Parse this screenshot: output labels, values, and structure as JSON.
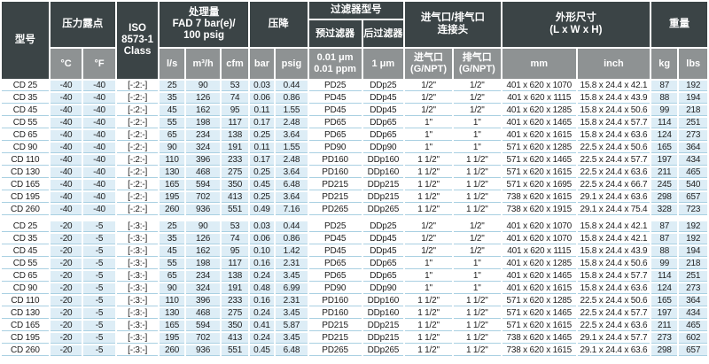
{
  "colors": {
    "header_dark": "#3b4446",
    "header_gray": "#8e9293",
    "cell_highlight_blue": "#ddedf6",
    "row_separator_blue": "#a9d0e2",
    "text": "#1f1f1f"
  },
  "table": {
    "groups": {
      "model": "型号",
      "dew_point": "压力露点",
      "iso": "ISO\n8573-1\nClass",
      "capacity": "处理量\nFAD 7 bar(e)/\n100 psig",
      "pressure_drop": "压降",
      "filters": "过滤器型号",
      "filters_pre": "预过滤器",
      "filters_after": "后过滤器",
      "connections": "进气口/排气口\n连接头",
      "dimensions": "外形尺寸\n(L x W x H)",
      "weight": "重量"
    },
    "units": {
      "c": "°C",
      "f": "°F",
      "ls": "l/s",
      "m3h": "m³/h",
      "cfm": "cfm",
      "bar": "bar",
      "psig": "psig",
      "pre": "0.01 μm\n0.01 ppm",
      "after": "1 μm",
      "inlet": "进气口\n(G/NPT)",
      "outlet": "排气口\n(G/NPT)",
      "mm": "mm",
      "inch": "inch",
      "kg": "kg",
      "lbs": "lbs"
    },
    "row_keys": [
      "model",
      "c",
      "f",
      "iso",
      "ls",
      "m3h",
      "cfm",
      "bar",
      "psig",
      "pre",
      "after",
      "inlet",
      "outlet",
      "mm",
      "inch",
      "kg",
      "lbs"
    ],
    "rows": [
      [
        "CD 25",
        "-40",
        "-40",
        "[-:2:-]",
        "25",
        "90",
        "53",
        "0.03",
        "0.44",
        "PD25",
        "DDp25",
        "1/2\"",
        "1/2\"",
        "401 x 620 x 1070",
        "15.8 x 24.4 x 42.1",
        "87",
        "192"
      ],
      [
        "CD 35",
        "-40",
        "-40",
        "[-:2:-]",
        "35",
        "126",
        "74",
        "0.06",
        "0.86",
        "PD45",
        "DDp45",
        "1/2\"",
        "1/2\"",
        "401 x 620 x 1115",
        "15.8 x 24.4 x 43.9",
        "88",
        "194"
      ],
      [
        "CD 45",
        "-40",
        "-40",
        "[-:2:-]",
        "45",
        "162",
        "95",
        "0.11",
        "1.55",
        "PD45",
        "DDp45",
        "1/2\"",
        "1/2\"",
        "401 x 620 x 1285",
        "15.8 x 24.4 x 50.6",
        "99",
        "218"
      ],
      [
        "CD 55",
        "-40",
        "-40",
        "[-:2:-]",
        "55",
        "198",
        "117",
        "0.17",
        "2.48",
        "PD65",
        "DDp65",
        "1\"",
        "1\"",
        "401 x 620 x 1465",
        "15.8 x 24.4 x 57.7",
        "114",
        "251"
      ],
      [
        "CD 65",
        "-40",
        "-40",
        "[-:2:-]",
        "65",
        "234",
        "138",
        "0.25",
        "3.64",
        "PD65",
        "DDp65",
        "1\"",
        "1\"",
        "401 x 620 x 1615",
        "15.8 x 24.4 x 63.6",
        "124",
        "273"
      ],
      [
        "CD 90",
        "-40",
        "-40",
        "[-:2:-]",
        "90",
        "324",
        "191",
        "0.11",
        "1.55",
        "PD90",
        "DDp90",
        "1\"",
        "1\"",
        "571 x 620 x 1285",
        "22.5 x 24.4 x 50.6",
        "165",
        "364"
      ],
      [
        "CD 110",
        "-40",
        "-40",
        "[-:2:-]",
        "110",
        "396",
        "233",
        "0.17",
        "2.48",
        "PD160",
        "DDp160",
        "1 1/2\"",
        "1 1/2\"",
        "571 x 620 x 1465",
        "22.5 x 24.4 x 57.7",
        "197",
        "434"
      ],
      [
        "CD 130",
        "-40",
        "-40",
        "[-:2:-]",
        "130",
        "468",
        "275",
        "0.25",
        "3.64",
        "PD160",
        "DDp160",
        "1 1/2\"",
        "1 1/2\"",
        "571 x 620 x 1615",
        "22.5 x 24.4 x 63.6",
        "211",
        "465"
      ],
      [
        "CD 165",
        "-40",
        "-40",
        "[-:2:-]",
        "165",
        "594",
        "350",
        "0.45",
        "6.48",
        "PD215",
        "DDp215",
        "1 1/2\"",
        "1 1/2\"",
        "571 x 620 x 1695",
        "22.5 x 24.4 x 66.7",
        "245",
        "540"
      ],
      [
        "CD 195",
        "-40",
        "-40",
        "[-:2:-]",
        "195",
        "702",
        "413",
        "0.25",
        "3.64",
        "PD215",
        "DDp215",
        "1 1/2\"",
        "1 1/2\"",
        "738 x 620 x 1615",
        "29.1 x 24.4 x 63.6",
        "298",
        "657"
      ],
      [
        "CD 260",
        "-40",
        "-40",
        "[-:2:-]",
        "260",
        "936",
        "551",
        "0.49",
        "7.16",
        "PD265",
        "DDp265",
        "1 1/2\"",
        "1 1/2\"",
        "738 x 620 x 1915",
        "29.1 x 24.4 x 75.4",
        "328",
        "723"
      ],
      [
        "CD 25",
        "-20",
        "-5",
        "[-:3:-]",
        "25",
        "90",
        "53",
        "0.03",
        "0.44",
        "PD25",
        "DDp25",
        "1/2\"",
        "1/2\"",
        "401 x 620 x 1070",
        "15.8 x 24.4 x 42.1",
        "87",
        "192"
      ],
      [
        "CD 35",
        "-20",
        "-5",
        "[-:3:-]",
        "35",
        "126",
        "74",
        "0.06",
        "0.86",
        "PD45",
        "DDp45",
        "1/2\"",
        "1/2\"",
        "401 x 620 x 1070",
        "15.8 x 24.4 x 42.1",
        "87",
        "192"
      ],
      [
        "CD 45",
        "-20",
        "-5",
        "[-:3:-]",
        "45",
        "162",
        "95",
        "0.10",
        "1.42",
        "PD45",
        "DDp45",
        "1/2\"",
        "1/2\"",
        "401 x 620 x 1115",
        "15.8 x 24.4 x 43.9",
        "88",
        "194"
      ],
      [
        "CD 55",
        "-20",
        "-5",
        "[-:3:-]",
        "55",
        "198",
        "117",
        "0.16",
        "2.31",
        "PD65",
        "DDp65",
        "1\"",
        "1\"",
        "401 x 620 x 1285",
        "15.8 x 24.4 x 50.6",
        "99",
        "218"
      ],
      [
        "CD 65",
        "-20",
        "-5",
        "[-:3:-]",
        "65",
        "234",
        "138",
        "0.24",
        "3.45",
        "PD65",
        "DDp65",
        "1\"",
        "1\"",
        "401 x 620 x 1465",
        "15.8 x 24.4 x 57.7",
        "114",
        "251"
      ],
      [
        "CD 90",
        "-20",
        "-5",
        "[-:3:-]",
        "90",
        "324",
        "191",
        "0.48",
        "6.99",
        "PD90",
        "DDp90",
        "1\"",
        "1\"",
        "401 x 620 x 1615",
        "15.8 x 24.4 x 63.6",
        "124",
        "273"
      ],
      [
        "CD 110",
        "-20",
        "-5",
        "[-:3:-]",
        "110",
        "396",
        "233",
        "0.16",
        "2.31",
        "PD160",
        "DDp160",
        "1 1/2\"",
        "1 1/2\"",
        "571 x 620 x 1285",
        "22.5 x 24.4 x 50.6",
        "165",
        "364"
      ],
      [
        "CD 130",
        "-20",
        "-5",
        "[-:3:-]",
        "130",
        "468",
        "275",
        "0.24",
        "3.45",
        "PD160",
        "DDp160",
        "1 1/2\"",
        "1 1/2\"",
        "571 x 620 x 1465",
        "22.5 x 24.4 x 57.7",
        "197",
        "434"
      ],
      [
        "CD 165",
        "-20",
        "-5",
        "[-:3:-]",
        "165",
        "594",
        "350",
        "0.41",
        "5.87",
        "PD215",
        "DDp215",
        "1 1/2\"",
        "1 1/2\"",
        "571 x 620 x 1615",
        "22.5 x 24.4 x 63.6",
        "211",
        "465"
      ],
      [
        "CD 195",
        "-20",
        "-5",
        "[-:3:-]",
        "195",
        "702",
        "413",
        "0.24",
        "3.45",
        "PD215",
        "DDp215",
        "1 1/2\"",
        "1 1/2\"",
        "738 x 620 x 1465",
        "29.1 x 24.4 x 57.7",
        "273",
        "602"
      ],
      [
        "CD 260",
        "-20",
        "-5",
        "[-:3:-]",
        "260",
        "936",
        "551",
        "0.45",
        "6.48",
        "PD265",
        "DDp265",
        "1 1/2\"",
        "1 1/2\"",
        "738 x 620 x 1615",
        "29.1 x 24.4 x 63.6",
        "298",
        "657"
      ]
    ]
  }
}
